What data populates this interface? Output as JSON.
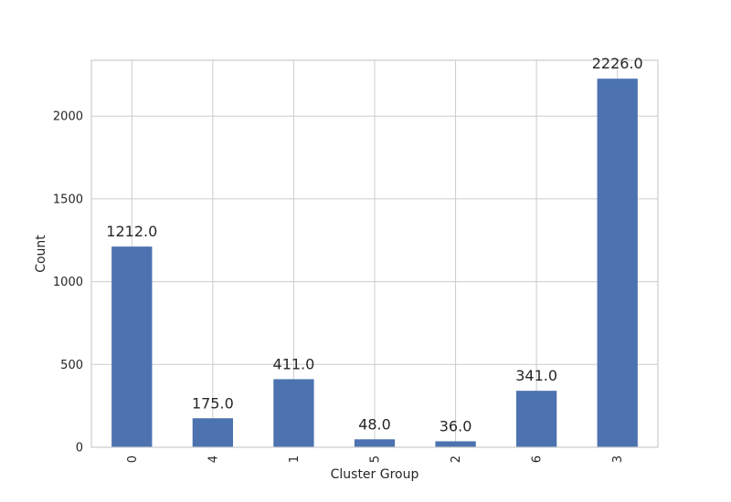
{
  "chart_data": {
    "type": "bar",
    "title": "",
    "xlabel": "Cluster Group",
    "ylabel": "Count",
    "categories": [
      "0",
      "4",
      "1",
      "5",
      "2",
      "6",
      "3"
    ],
    "values": [
      1212.0,
      175.0,
      411.0,
      48.0,
      36.0,
      341.0,
      2226.0
    ],
    "value_labels": [
      "1212.0",
      "175.0",
      "411.0",
      "48.0",
      "36.0",
      "341.0",
      "2226.0"
    ],
    "ylim": [
      0,
      2337.3
    ],
    "yticks": [
      0,
      500,
      1000,
      1500,
      2000
    ],
    "ytick_labels": [
      "0",
      "500",
      "1000",
      "1500",
      "2000"
    ],
    "grid": true,
    "xtick_rotation": "vertical",
    "bar_color": "#4c72b0"
  }
}
